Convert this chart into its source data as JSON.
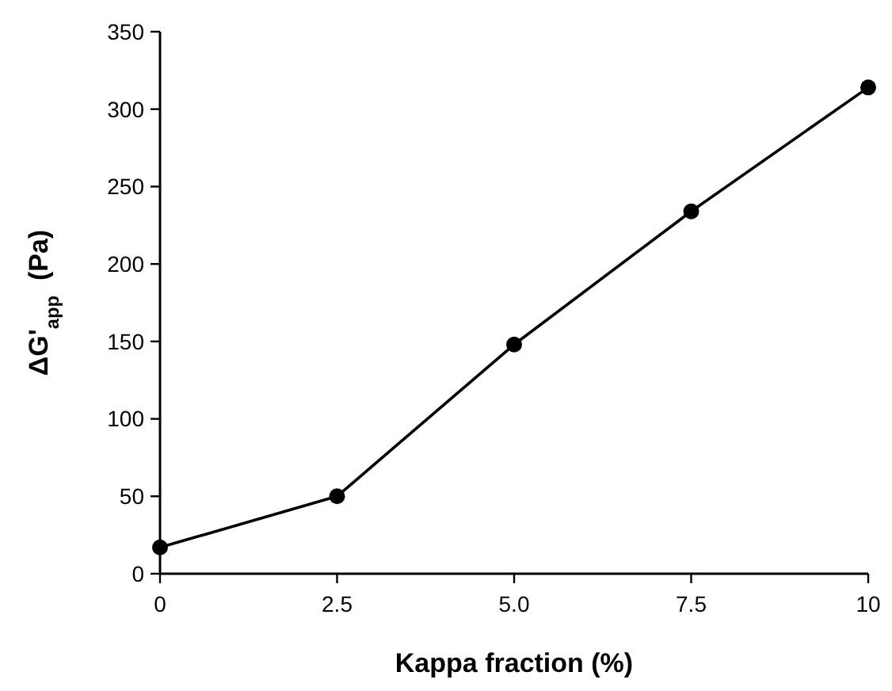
{
  "chart_data": {
    "type": "line",
    "xlabel": "Kappa fraction (%)",
    "ylabel": "ΔG'$_{app}$  (Pa)",
    "x": [
      0,
      2.5,
      5,
      7.5,
      10
    ],
    "series": [
      {
        "color": "#000000",
        "values": [
          17,
          50,
          148,
          234,
          314
        ]
      }
    ],
    "xlim": [
      0,
      10
    ],
    "xticks": [
      0,
      {
        "value": 2.5,
        "label": "2.5"
      },
      {
        "value": 5,
        "label": "5.0"
      },
      {
        "value": 7.5,
        "label": "7.5"
      },
      10
    ],
    "ylim": [
      0,
      350
    ],
    "yticks": [
      0,
      50,
      100,
      150,
      200,
      250,
      300,
      350
    ],
    "marker": "circle",
    "line_style": "solid"
  }
}
